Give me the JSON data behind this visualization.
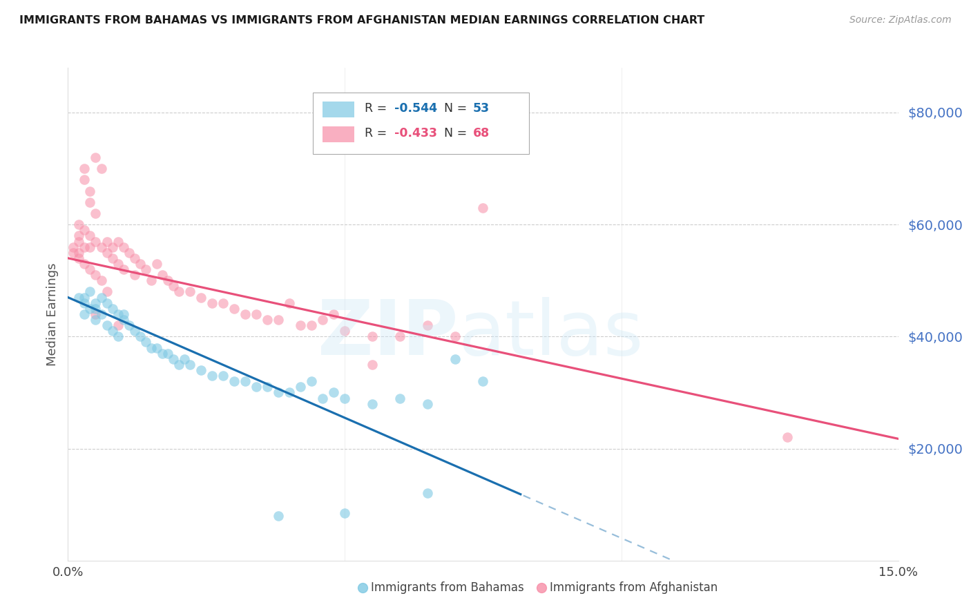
{
  "title": "IMMIGRANTS FROM BAHAMAS VS IMMIGRANTS FROM AFGHANISTAN MEDIAN EARNINGS CORRELATION CHART",
  "source": "Source: ZipAtlas.com",
  "ylabel": "Median Earnings",
  "ytick_labels": [
    "$80,000",
    "$60,000",
    "$40,000",
    "$20,000"
  ],
  "ytick_values": [
    80000,
    60000,
    40000,
    20000
  ],
  "xlim": [
    0.0,
    0.15
  ],
  "ylim": [
    0,
    88000
  ],
  "bahamas_R": -0.544,
  "bahamas_N": 53,
  "afghanistan_R": -0.433,
  "afghanistan_N": 68,
  "bahamas_color": "#7ec8e3",
  "afghanistan_color": "#f78da7",
  "bahamas_line_color": "#1a6faf",
  "afghanistan_line_color": "#e8507a",
  "legend_label_bahamas": "Immigrants from Bahamas",
  "legend_label_afghanistan": "Immigrants from Afghanistan",
  "background_color": "#ffffff",
  "bahamas_intercept": 47000,
  "bahamas_slope": -430000,
  "afghanistan_intercept": 54000,
  "afghanistan_slope": -215000,
  "bahamas_x": [
    0.002,
    0.003,
    0.003,
    0.004,
    0.004,
    0.005,
    0.005,
    0.006,
    0.006,
    0.007,
    0.007,
    0.008,
    0.008,
    0.009,
    0.009,
    0.01,
    0.01,
    0.011,
    0.012,
    0.013,
    0.014,
    0.015,
    0.016,
    0.017,
    0.018,
    0.019,
    0.02,
    0.021,
    0.022,
    0.024,
    0.026,
    0.028,
    0.03,
    0.032,
    0.034,
    0.036,
    0.038,
    0.04,
    0.042,
    0.044,
    0.046,
    0.048,
    0.05,
    0.055,
    0.06,
    0.065,
    0.07,
    0.075,
    0.003,
    0.005,
    0.038,
    0.05,
    0.065
  ],
  "bahamas_y": [
    47000,
    46000,
    44000,
    48000,
    45000,
    46000,
    43000,
    47000,
    44000,
    46000,
    42000,
    45000,
    41000,
    44000,
    40000,
    44000,
    43000,
    42000,
    41000,
    40000,
    39000,
    38000,
    38000,
    37000,
    37000,
    36000,
    35000,
    36000,
    35000,
    34000,
    33000,
    33000,
    32000,
    32000,
    31000,
    31000,
    30000,
    30000,
    31000,
    32000,
    29000,
    30000,
    29000,
    28000,
    29000,
    28000,
    36000,
    32000,
    47000,
    45000,
    8000,
    8500,
    12000
  ],
  "afghanistan_x": [
    0.001,
    0.002,
    0.002,
    0.003,
    0.003,
    0.004,
    0.004,
    0.005,
    0.005,
    0.006,
    0.006,
    0.007,
    0.007,
    0.008,
    0.008,
    0.009,
    0.009,
    0.01,
    0.01,
    0.011,
    0.012,
    0.012,
    0.013,
    0.014,
    0.015,
    0.016,
    0.017,
    0.018,
    0.019,
    0.02,
    0.022,
    0.024,
    0.026,
    0.028,
    0.03,
    0.032,
    0.034,
    0.036,
    0.038,
    0.04,
    0.042,
    0.044,
    0.046,
    0.048,
    0.05,
    0.055,
    0.06,
    0.065,
    0.07,
    0.075,
    0.003,
    0.004,
    0.005,
    0.002,
    0.003,
    0.001,
    0.002,
    0.003,
    0.004,
    0.005,
    0.009,
    0.055,
    0.13,
    0.002,
    0.004,
    0.005,
    0.006,
    0.007
  ],
  "afghanistan_y": [
    56000,
    57000,
    55000,
    70000,
    68000,
    66000,
    64000,
    62000,
    72000,
    70000,
    56000,
    57000,
    55000,
    56000,
    54000,
    57000,
    53000,
    56000,
    52000,
    55000,
    51000,
    54000,
    53000,
    52000,
    50000,
    53000,
    51000,
    50000,
    49000,
    48000,
    48000,
    47000,
    46000,
    46000,
    45000,
    44000,
    44000,
    43000,
    43000,
    46000,
    42000,
    42000,
    43000,
    44000,
    41000,
    40000,
    40000,
    42000,
    40000,
    63000,
    59000,
    58000,
    57000,
    60000,
    56000,
    55000,
    54000,
    53000,
    52000,
    51000,
    42000,
    35000,
    22000,
    58000,
    56000,
    44000,
    50000,
    48000
  ]
}
